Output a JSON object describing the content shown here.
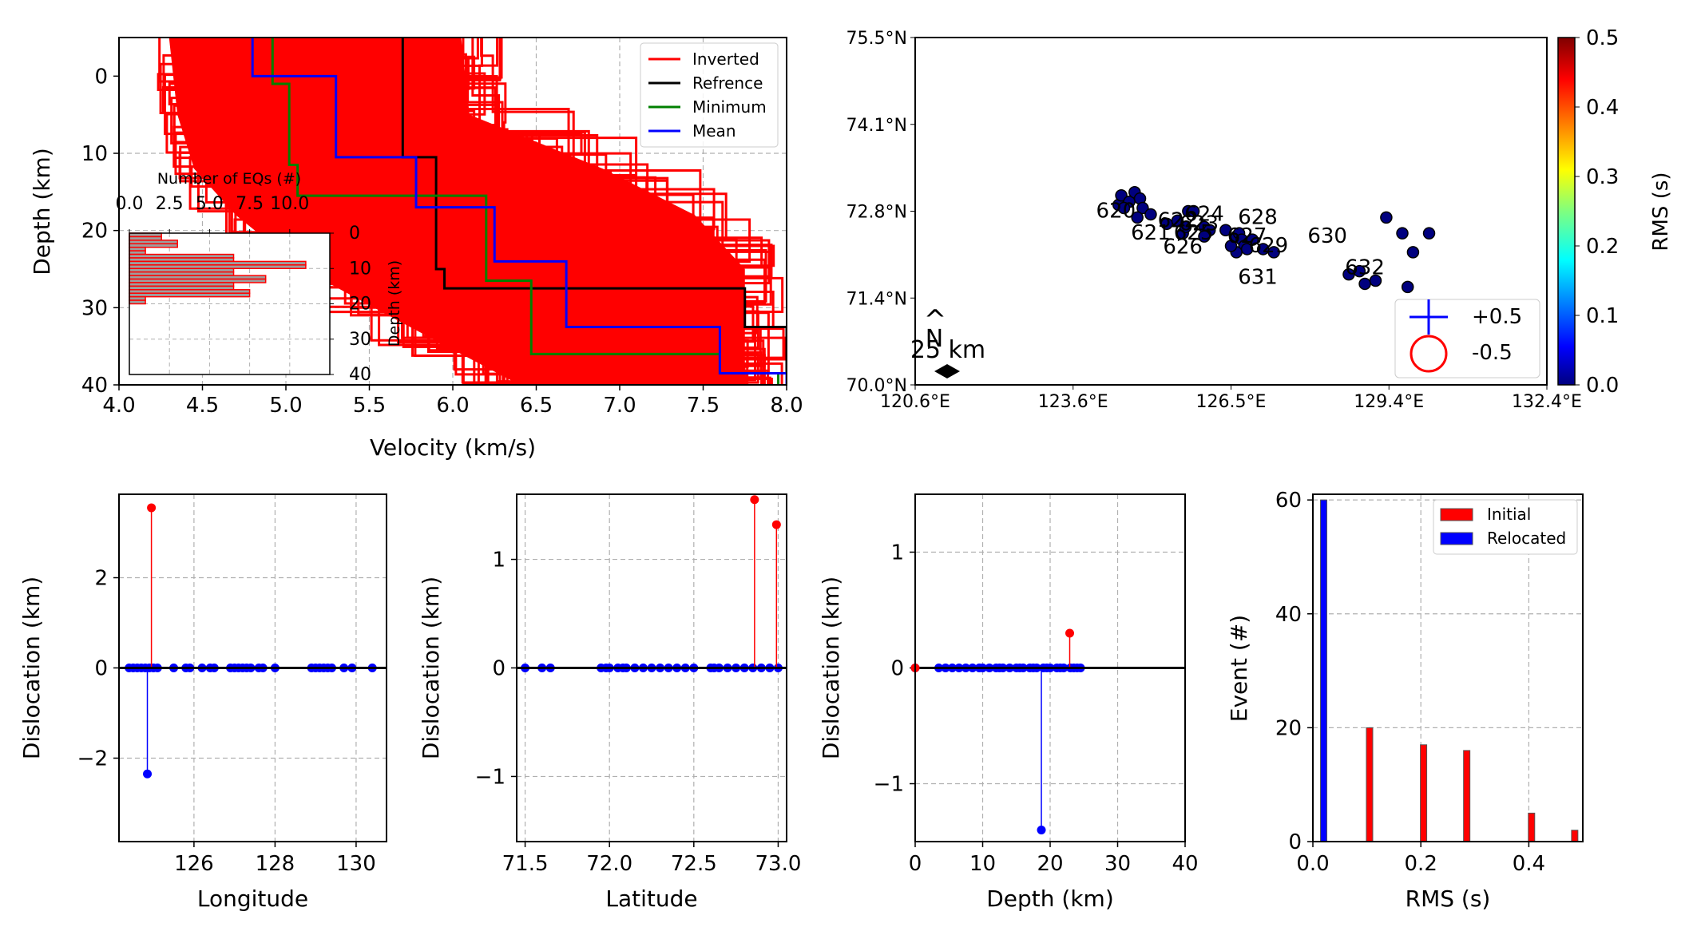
{
  "chart_data": [
    {
      "id": "velocity",
      "type": "line",
      "title": "",
      "xlabel": "Velocity (km/s)",
      "ylabel": "Depth (km)",
      "xlim": [
        4.0,
        8.0
      ],
      "ylim": [
        40,
        -5
      ],
      "xticks": [
        "4.0",
        "4.5",
        "5.0",
        "5.5",
        "6.0",
        "6.5",
        "7.0",
        "7.5",
        "8.0"
      ],
      "yticks": [
        "0",
        "10",
        "20",
        "30",
        "40"
      ],
      "grid": true,
      "legend_position": "top-right",
      "legend": [
        "Inverted",
        "Refrence",
        "Minimum",
        "Mean"
      ],
      "colors": {
        "inverted": "#ff0000",
        "reference": "#000000",
        "minimum": "#008000",
        "mean": "#0000ff"
      },
      "series": [
        {
          "name": "Refrence",
          "depths": [
            -5,
            10.5,
            10.5,
            25,
            25,
            27.5,
            27.5,
            32.5,
            32.5,
            40
          ],
          "velocities": [
            5.7,
            5.7,
            5.9,
            5.9,
            5.95,
            5.95,
            7.75,
            7.75,
            8.0,
            8.0
          ]
        },
        {
          "name": "Minimum",
          "depths": [
            -5,
            1,
            1,
            11.5,
            11.5,
            15.5,
            15.5,
            26.5,
            26.5,
            36,
            36,
            38.5,
            38.5,
            40
          ],
          "velocities": [
            4.92,
            4.92,
            5.02,
            5.02,
            5.07,
            5.07,
            6.2,
            6.2,
            6.47,
            6.47,
            7.6,
            7.6,
            7.95,
            7.95
          ]
        },
        {
          "name": "Mean",
          "depths": [
            -5,
            0,
            0,
            10.5,
            10.5,
            17,
            17,
            24,
            24,
            32.5,
            32.5,
            38.5,
            38.5,
            40
          ],
          "velocities": [
            4.8,
            4.8,
            5.3,
            5.3,
            5.78,
            5.78,
            6.25,
            6.25,
            6.68,
            6.68,
            7.6,
            7.6,
            8.0,
            8.0
          ]
        }
      ],
      "inverted_band": {
        "min_velocity": [
          4.2,
          4.25,
          4.35,
          4.6,
          5.0,
          5.6,
          6.3
        ],
        "max_velocity": [
          6.3,
          6.35,
          7.15,
          7.7,
          8.0,
          8.0,
          8.0
        ],
        "depths": [
          -5,
          5,
          12,
          18,
          25,
          32,
          40
        ]
      },
      "inset": {
        "type": "bar",
        "orientation": "horizontal",
        "xlabel": "Number of EQs (#)",
        "ylabel": "Depth (km)",
        "xlim": [
          0,
          12.5
        ],
        "ylim": [
          40,
          0
        ],
        "xticks": [
          "0.0",
          "2.5",
          "5.0",
          "7.5",
          "10.0"
        ],
        "yticks": [
          "0",
          "10",
          "20",
          "30",
          "40"
        ],
        "bin_tops": [
          0,
          1,
          2,
          3,
          4,
          5,
          6,
          7,
          8,
          9,
          10,
          11,
          12,
          13,
          14,
          15,
          16,
          17,
          18,
          19,
          20,
          21,
          22,
          23,
          24,
          25
        ],
        "counts": [
          2,
          2,
          3,
          3,
          1,
          1,
          6.5,
          6.5,
          11,
          11,
          6.5,
          6.5,
          8.5,
          8.5,
          6.5,
          6.5,
          7.5,
          7.5,
          1,
          1,
          0,
          0,
          0,
          0,
          0,
          0
        ],
        "bar_color": "#9e9e9e",
        "edge_color": "#ff0000"
      }
    },
    {
      "id": "map",
      "type": "scatter",
      "xlabel": "",
      "ylabel": "",
      "xlim": [
        120.6,
        132.4
      ],
      "ylim": [
        70.0,
        75.5
      ],
      "xticks": [
        "120.6°E",
        "123.6°E",
        "126.5°E",
        "129.4°E",
        "132.4°E"
      ],
      "yticks": [
        "70.0°N",
        "71.4°N",
        "72.8°N",
        "74.1°N",
        "75.5°N"
      ],
      "scale_label": "25 km",
      "north_label": "N",
      "colorbar": {
        "label": "RMS (s)",
        "ticks": [
          "0.0",
          "0.1",
          "0.2",
          "0.3",
          "0.4",
          "0.5"
        ],
        "min": 0.0,
        "max": 0.5
      },
      "legend": [
        "+0.5",
        "-0.5"
      ],
      "station_labels": [
        {
          "text": "621",
          "lon": 125.0,
          "lat": 72.4
        },
        {
          "text": "622",
          "lon": 125.5,
          "lat": 72.6
        },
        {
          "text": "623",
          "lon": 125.9,
          "lat": 72.55
        },
        {
          "text": "624",
          "lon": 126.0,
          "lat": 72.7
        },
        {
          "text": "625",
          "lon": 125.8,
          "lat": 72.4
        },
        {
          "text": "626",
          "lon": 125.6,
          "lat": 72.18
        },
        {
          "text": "627",
          "lon": 126.8,
          "lat": 72.35
        },
        {
          "text": "628",
          "lon": 127.0,
          "lat": 72.65
        },
        {
          "text": "629",
          "lon": 127.2,
          "lat": 72.2
        },
        {
          "text": "630",
          "lon": 128.3,
          "lat": 72.35
        },
        {
          "text": "631",
          "lon": 127.0,
          "lat": 71.7
        },
        {
          "text": "632",
          "lon": 129.0,
          "lat": 71.85
        },
        {
          "text": "620",
          "lon": 124.35,
          "lat": 72.75
        }
      ],
      "events": {
        "lon": [
          124.4,
          124.45,
          124.6,
          124.5,
          124.7,
          124.8,
          124.85,
          124.75,
          125.0,
          125.3,
          125.5,
          125.6,
          125.7,
          125.65,
          125.8,
          126.0,
          126.1,
          126.0,
          126.4,
          126.6,
          126.65,
          126.7,
          126.75,
          126.8,
          126.6,
          126.5,
          126.9,
          127.1,
          127.3,
          128.7,
          128.9,
          129.0,
          129.2,
          129.4,
          129.7,
          129.8,
          129.9,
          130.2
        ],
        "lat": [
          72.85,
          73.0,
          72.9,
          72.8,
          73.05,
          72.95,
          72.8,
          72.65,
          72.7,
          72.55,
          72.6,
          72.4,
          72.75,
          72.5,
          72.75,
          72.5,
          72.45,
          72.35,
          72.45,
          72.35,
          72.4,
          72.3,
          72.2,
          72.15,
          72.1,
          72.2,
          72.3,
          72.15,
          72.1,
          71.75,
          71.8,
          71.6,
          71.65,
          72.65,
          72.4,
          71.55,
          72.1,
          72.4
        ],
        "rms": [
          0.01,
          0.02,
          0.0,
          0.01,
          0.02,
          0.01,
          0.0,
          0.01,
          0.02,
          0.01,
          0.0,
          0.01,
          0.02,
          0.0,
          0.01,
          0.02,
          0.01,
          0.0,
          0.01,
          0.02,
          0.0,
          0.01,
          0.02,
          0.01,
          0.0,
          0.01,
          0.02,
          0.01,
          0.0,
          0.01,
          0.02,
          0.0,
          0.01,
          0.02,
          0.01,
          0.0,
          0.01,
          0.02
        ]
      }
    },
    {
      "id": "stem_longitude",
      "type": "scatter",
      "xlabel": "Longitude",
      "ylabel": "Dislocation (km)",
      "xlim": [
        124.15,
        130.75
      ],
      "ylim": [
        -3.85,
        3.85
      ],
      "xticks": [
        "126",
        "128",
        "130"
      ],
      "yticks": [
        "2",
        "0",
        "−2"
      ],
      "xtick_values": [
        126,
        128,
        130
      ],
      "ytick_values": [
        2,
        0,
        -2
      ],
      "positive": [
        {
          "x": 124.95,
          "y": 3.55
        }
      ],
      "negative": [
        {
          "x": 124.85,
          "y": -2.35
        }
      ],
      "zero_points": [
        124.4,
        124.5,
        124.6,
        124.7,
        124.8,
        124.9,
        125.0,
        125.1,
        125.5,
        125.8,
        125.9,
        126.2,
        126.4,
        126.5,
        126.9,
        127.0,
        127.1,
        127.2,
        127.3,
        127.4,
        127.6,
        127.7,
        128.0,
        128.9,
        129.0,
        129.1,
        129.2,
        129.3,
        129.4,
        129.7,
        129.9,
        130.4
      ]
    },
    {
      "id": "stem_latitude",
      "type": "scatter",
      "xlabel": "Latitude",
      "ylabel": "Dislocation (km)",
      "xlim": [
        71.45,
        73.05
      ],
      "ylim": [
        -1.6,
        1.6
      ],
      "xticks": [
        "71.5",
        "72.0",
        "72.5",
        "73.0"
      ],
      "yticks": [
        "1",
        "0",
        "−1"
      ],
      "xtick_values": [
        71.5,
        72.0,
        72.5,
        73.0
      ],
      "ytick_values": [
        1,
        0,
        -1
      ],
      "positive": [
        {
          "x": 72.86,
          "y": 1.55
        },
        {
          "x": 72.99,
          "y": 1.32
        }
      ],
      "negative": [],
      "zero_points": [
        71.5,
        71.6,
        71.65,
        71.95,
        71.98,
        72.0,
        72.05,
        72.08,
        72.1,
        72.15,
        72.2,
        72.25,
        72.3,
        72.35,
        72.4,
        72.45,
        72.5,
        72.6,
        72.62,
        72.65,
        72.7,
        72.75,
        72.8,
        72.85,
        72.9,
        72.95,
        73.0
      ]
    },
    {
      "id": "stem_depth",
      "type": "scatter",
      "xlabel": "Depth (km)",
      "ylabel": "Dislocation (km)",
      "xlim": [
        0,
        40
      ],
      "ylim": [
        -1.5,
        1.5
      ],
      "xticks": [
        "0",
        "10",
        "20",
        "30",
        "40"
      ],
      "yticks": [
        "1",
        "0",
        "−1"
      ],
      "xtick_values": [
        0,
        10,
        20,
        30,
        40
      ],
      "ytick_values": [
        1,
        0,
        -1
      ],
      "positive": [
        {
          "x": 22.9,
          "y": 0.3
        }
      ],
      "negative": [
        {
          "x": 18.7,
          "y": -1.4
        }
      ],
      "zero_points": [
        0.0,
        3.5,
        4.5,
        5.5,
        6.5,
        7.5,
        8.5,
        9.5,
        10.0,
        11.0,
        12.0,
        12.5,
        13.0,
        14.0,
        15.0,
        15.5,
        16.0,
        17.0,
        17.5,
        18.0,
        19.0,
        19.5,
        20.0,
        21.0,
        21.5,
        22.0,
        23.0,
        23.5,
        24.0,
        24.5
      ]
    },
    {
      "id": "rms_hist",
      "type": "bar",
      "xlabel": "RMS (s)",
      "ylabel": "Event (#)",
      "xlim": [
        0.0,
        0.5
      ],
      "ylim": [
        0,
        61
      ],
      "xticks": [
        "0.0",
        "0.2",
        "0.4"
      ],
      "yticks": [
        "0",
        "20",
        "40",
        "60"
      ],
      "xtick_values": [
        0.0,
        0.2,
        0.4
      ],
      "ytick_values": [
        0,
        20,
        40,
        60
      ],
      "legend_position": "top-right",
      "series": [
        {
          "name": "Initial",
          "color": "#ff0000",
          "x": [
            0.105,
            0.205,
            0.285,
            0.405,
            0.485
          ],
          "values": [
            20,
            17,
            16,
            5,
            2
          ]
        },
        {
          "name": "Relocated",
          "color": "#0000ff",
          "x": [
            0.02
          ],
          "values": [
            60
          ]
        }
      ]
    }
  ]
}
